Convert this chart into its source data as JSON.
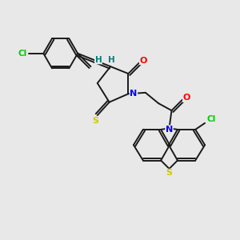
{
  "background_color": "#e8e8e8",
  "bond_color": "#1a1a1a",
  "atom_colors": {
    "S": "#cccc00",
    "N": "#0000ff",
    "O": "#ff0000",
    "Cl": "#00cc00",
    "H": "#008080",
    "C": "#1a1a1a"
  },
  "figsize": [
    3.0,
    3.0
  ],
  "dpi": 100
}
